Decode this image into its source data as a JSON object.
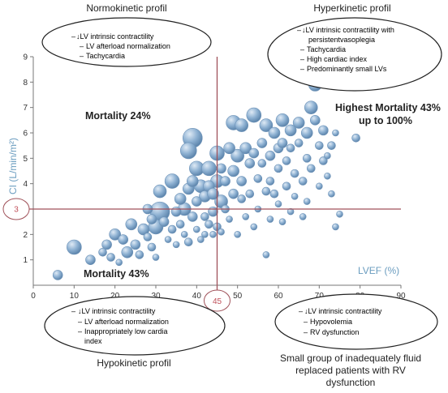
{
  "chart_data": {
    "type": "scatter",
    "bubble": true,
    "xlabel": "LVEF (%)",
    "ylabel": "CI (L/min/m²)",
    "xlim": [
      0,
      90
    ],
    "ylim": [
      0,
      9
    ],
    "x_ticks": [
      "0",
      "10",
      "20",
      "30",
      "40",
      "50",
      "60",
      "70",
      "80",
      "90"
    ],
    "y_ticks": [
      "1",
      "2",
      "3",
      "4",
      "5",
      "6",
      "7",
      "8",
      "9"
    ],
    "grid": false,
    "bubble_color": "#8fb2d3",
    "threshold_line_color": "#a0525a",
    "thresholds": {
      "x": 45,
      "y": 3,
      "x_label": "45",
      "y_label": "3"
    },
    "quadrant_labels": {
      "top_left": "Mortality 24%",
      "top_right_line1": "Highest Mortality 43%",
      "top_right_line2": "up to 100%",
      "bottom_left": "Mortality 43%"
    },
    "profiles": {
      "top_left": {
        "title": "Normokinetic profil",
        "items": [
          "↓LV intrinsic contractility",
          "LV afterload normalization",
          "Tachycardia"
        ]
      },
      "top_right": {
        "title": "Hyperkinetic profil",
        "items": [
          "↓LV intrinsic contractility with",
          "persistentvasoplegia",
          "Tachycardia",
          "High cardiac index",
          "Predominantly small LVs"
        ]
      },
      "bottom_left": {
        "title": "Hypokinetic profil",
        "items": [
          "↓LV intrinsic contractility",
          "LV afterload normalization",
          "Inappropriately low cardia",
          "index"
        ]
      },
      "bottom_right": {
        "title_line1": "Small group of inadequately fluid",
        "title_line2": "replaced patients with RV",
        "title_line3": "dysfunction",
        "items": [
          "↓LV intrinsic contractility",
          "Hypovolemia",
          "RV dysfunction"
        ]
      }
    },
    "points": [
      {
        "x": 6,
        "y": 0.4,
        "s": 6
      },
      {
        "x": 10,
        "y": 1.5,
        "s": 9
      },
      {
        "x": 14,
        "y": 1.0,
        "s": 6
      },
      {
        "x": 17,
        "y": 1.3,
        "s": 5
      },
      {
        "x": 18,
        "y": 1.6,
        "s": 6
      },
      {
        "x": 19,
        "y": 1.1,
        "s": 5
      },
      {
        "x": 20,
        "y": 2.0,
        "s": 7
      },
      {
        "x": 21,
        "y": 0.9,
        "s": 4
      },
      {
        "x": 22,
        "y": 1.8,
        "s": 6
      },
      {
        "x": 23,
        "y": 1.3,
        "s": 7
      },
      {
        "x": 24,
        "y": 2.4,
        "s": 7
      },
      {
        "x": 25,
        "y": 1.6,
        "s": 6
      },
      {
        "x": 26,
        "y": 1.2,
        "s": 5
      },
      {
        "x": 27,
        "y": 2.2,
        "s": 7
      },
      {
        "x": 28,
        "y": 1.9,
        "s": 5
      },
      {
        "x": 28,
        "y": 3.0,
        "s": 6
      },
      {
        "x": 29,
        "y": 1.5,
        "s": 5
      },
      {
        "x": 29,
        "y": 2.6,
        "s": 6
      },
      {
        "x": 30,
        "y": 2.3,
        "s": 9
      },
      {
        "x": 30,
        "y": 1.1,
        "s": 4
      },
      {
        "x": 31,
        "y": 3.7,
        "s": 8
      },
      {
        "x": 31,
        "y": 2.9,
        "s": 12
      },
      {
        "x": 32,
        "y": 2.5,
        "s": 6
      },
      {
        "x": 33,
        "y": 1.8,
        "s": 4
      },
      {
        "x": 34,
        "y": 2.2,
        "s": 5
      },
      {
        "x": 34,
        "y": 4.1,
        "s": 9
      },
      {
        "x": 35,
        "y": 2.9,
        "s": 6
      },
      {
        "x": 35,
        "y": 1.6,
        "s": 4
      },
      {
        "x": 36,
        "y": 3.4,
        "s": 7
      },
      {
        "x": 36,
        "y": 2.4,
        "s": 5
      },
      {
        "x": 37,
        "y": 2.0,
        "s": 4
      },
      {
        "x": 37,
        "y": 3.0,
        "s": 8
      },
      {
        "x": 38,
        "y": 3.8,
        "s": 7
      },
      {
        "x": 38,
        "y": 5.3,
        "s": 10
      },
      {
        "x": 38,
        "y": 1.7,
        "s": 5
      },
      {
        "x": 39,
        "y": 5.8,
        "s": 12
      },
      {
        "x": 39,
        "y": 4.1,
        "s": 7
      },
      {
        "x": 39,
        "y": 2.7,
        "s": 6
      },
      {
        "x": 40,
        "y": 4.6,
        "s": 9
      },
      {
        "x": 40,
        "y": 3.3,
        "s": 6
      },
      {
        "x": 40,
        "y": 2.2,
        "s": 4
      },
      {
        "x": 41,
        "y": 3.9,
        "s": 8
      },
      {
        "x": 41,
        "y": 1.8,
        "s": 4
      },
      {
        "x": 42,
        "y": 3.5,
        "s": 7
      },
      {
        "x": 42,
        "y": 2.7,
        "s": 5
      },
      {
        "x": 42,
        "y": 2.0,
        "s": 4
      },
      {
        "x": 43,
        "y": 4.6,
        "s": 9
      },
      {
        "x": 43,
        "y": 3.9,
        "s": 7
      },
      {
        "x": 43,
        "y": 2.4,
        "s": 5
      },
      {
        "x": 44,
        "y": 3.6,
        "s": 7
      },
      {
        "x": 44,
        "y": 2.9,
        "s": 6
      },
      {
        "x": 44,
        "y": 2.0,
        "s": 4
      },
      {
        "x": 45,
        "y": 5.2,
        "s": 9
      },
      {
        "x": 45,
        "y": 4.1,
        "s": 8
      },
      {
        "x": 45,
        "y": 2.3,
        "s": 5
      },
      {
        "x": 46,
        "y": 3.3,
        "s": 8
      },
      {
        "x": 46,
        "y": 4.6,
        "s": 6
      },
      {
        "x": 46,
        "y": 2.1,
        "s": 4
      },
      {
        "x": 47,
        "y": 4.1,
        "s": 6
      },
      {
        "x": 47,
        "y": 3.0,
        "s": 5
      },
      {
        "x": 48,
        "y": 5.4,
        "s": 7
      },
      {
        "x": 48,
        "y": 2.6,
        "s": 4
      },
      {
        "x": 49,
        "y": 4.5,
        "s": 7
      },
      {
        "x": 49,
        "y": 3.6,
        "s": 6
      },
      {
        "x": 49,
        "y": 6.4,
        "s": 9
      },
      {
        "x": 50,
        "y": 5.1,
        "s": 8
      },
      {
        "x": 50,
        "y": 2.0,
        "s": 4
      },
      {
        "x": 51,
        "y": 4.1,
        "s": 6
      },
      {
        "x": 51,
        "y": 3.4,
        "s": 5
      },
      {
        "x": 51,
        "y": 6.3,
        "s": 8
      },
      {
        "x": 52,
        "y": 5.4,
        "s": 7
      },
      {
        "x": 52,
        "y": 2.7,
        "s": 4
      },
      {
        "x": 53,
        "y": 4.8,
        "s": 6
      },
      {
        "x": 53,
        "y": 3.6,
        "s": 5
      },
      {
        "x": 54,
        "y": 6.7,
        "s": 9
      },
      {
        "x": 54,
        "y": 5.2,
        "s": 6
      },
      {
        "x": 54,
        "y": 2.3,
        "s": 4
      },
      {
        "x": 55,
        "y": 4.2,
        "s": 5
      },
      {
        "x": 55,
        "y": 3.0,
        "s": 4
      },
      {
        "x": 56,
        "y": 5.6,
        "s": 6
      },
      {
        "x": 56,
        "y": 4.8,
        "s": 5
      },
      {
        "x": 57,
        "y": 6.3,
        "s": 8
      },
      {
        "x": 57,
        "y": 3.7,
        "s": 5
      },
      {
        "x": 57,
        "y": 1.2,
        "s": 4
      },
      {
        "x": 58,
        "y": 5.1,
        "s": 6
      },
      {
        "x": 58,
        "y": 4.1,
        "s": 5
      },
      {
        "x": 58,
        "y": 2.6,
        "s": 4
      },
      {
        "x": 59,
        "y": 6.0,
        "s": 7
      },
      {
        "x": 59,
        "y": 3.6,
        "s": 5
      },
      {
        "x": 60,
        "y": 5.4,
        "s": 6
      },
      {
        "x": 60,
        "y": 4.6,
        "s": 5
      },
      {
        "x": 60,
        "y": 3.2,
        "s": 4
      },
      {
        "x": 61,
        "y": 6.5,
        "s": 8
      },
      {
        "x": 61,
        "y": 5.6,
        "s": 6
      },
      {
        "x": 61,
        "y": 2.5,
        "s": 4
      },
      {
        "x": 62,
        "y": 4.9,
        "s": 5
      },
      {
        "x": 62,
        "y": 3.9,
        "s": 5
      },
      {
        "x": 63,
        "y": 6.1,
        "s": 7
      },
      {
        "x": 63,
        "y": 5.4,
        "s": 5
      },
      {
        "x": 63,
        "y": 2.9,
        "s": 4
      },
      {
        "x": 64,
        "y": 4.4,
        "s": 5
      },
      {
        "x": 64,
        "y": 3.5,
        "s": 4
      },
      {
        "x": 65,
        "y": 6.4,
        "s": 7
      },
      {
        "x": 65,
        "y": 5.6,
        "s": 5
      },
      {
        "x": 66,
        "y": 4.1,
        "s": 5
      },
      {
        "x": 66,
        "y": 2.7,
        "s": 4
      },
      {
        "x": 67,
        "y": 6.0,
        "s": 7
      },
      {
        "x": 67,
        "y": 5.0,
        "s": 5
      },
      {
        "x": 67,
        "y": 3.3,
        "s": 4
      },
      {
        "x": 68,
        "y": 7.0,
        "s": 8
      },
      {
        "x": 68,
        "y": 4.6,
        "s": 5
      },
      {
        "x": 69,
        "y": 7.9,
        "s": 8
      },
      {
        "x": 69,
        "y": 6.5,
        "s": 6
      },
      {
        "x": 70,
        "y": 5.5,
        "s": 5
      },
      {
        "x": 70,
        "y": 3.9,
        "s": 4
      },
      {
        "x": 71,
        "y": 4.9,
        "s": 5
      },
      {
        "x": 71,
        "y": 6.1,
        "s": 6
      },
      {
        "x": 72,
        "y": 4.3,
        "s": 4
      },
      {
        "x": 72,
        "y": 5.1,
        "s": 4
      },
      {
        "x": 73,
        "y": 3.6,
        "s": 4
      },
      {
        "x": 73,
        "y": 5.5,
        "s": 5
      },
      {
        "x": 74,
        "y": 6.0,
        "s": 4
      },
      {
        "x": 74,
        "y": 2.3,
        "s": 4
      },
      {
        "x": 75,
        "y": 2.8,
        "s": 4
      },
      {
        "x": 79,
        "y": 5.8,
        "s": 5
      }
    ]
  }
}
